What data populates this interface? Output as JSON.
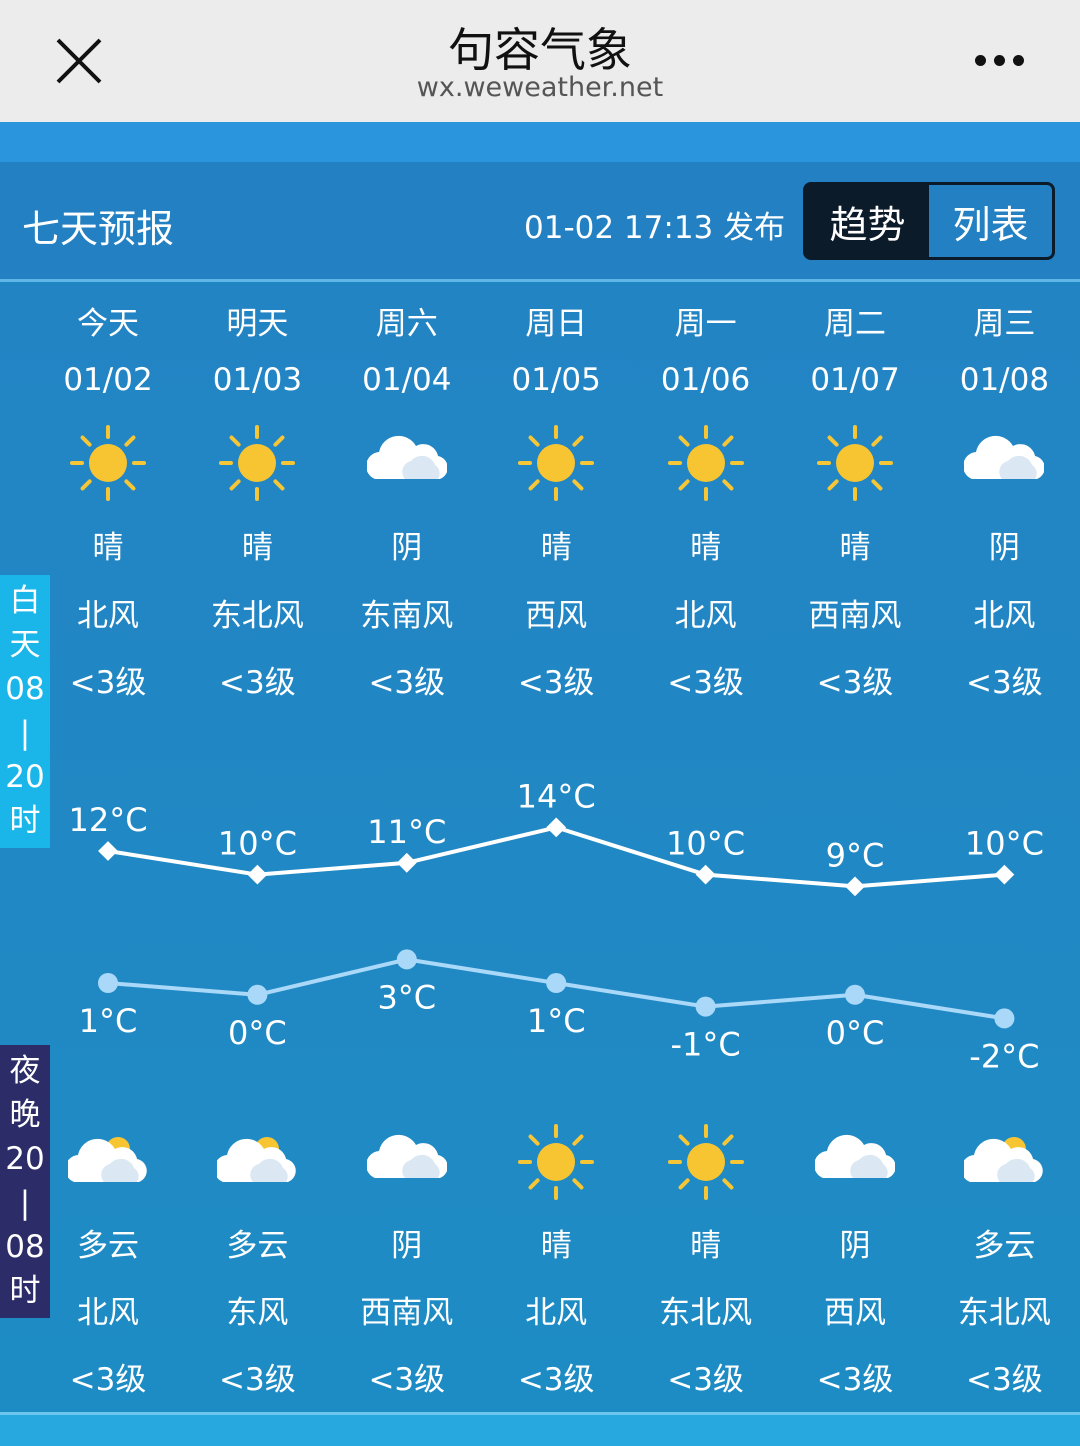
{
  "app": {
    "title": "句容气象",
    "url": "wx.weweather.net",
    "close_icon": "close-icon",
    "more_icon": "more-icon"
  },
  "header": {
    "title": "七天预报",
    "published": "01-02 17:13 发布",
    "toggle": [
      "趋势",
      "列表"
    ],
    "active": "趋势"
  },
  "labels": {
    "day": [
      "白",
      "天",
      "08",
      "|",
      "20",
      "时"
    ],
    "night": [
      "夜",
      "晚",
      "20",
      "|",
      "08",
      "时"
    ]
  },
  "colors": {
    "day_line": "#ffffff",
    "night_line": "#a9d8f8",
    "day_label_bg": "#1ab6ea",
    "night_label_bg": "#2c2d68"
  },
  "days": [
    {
      "name": "今天",
      "date": "01/02",
      "day_icon": "sun",
      "day_weather": "晴",
      "day_wind": "北风",
      "day_level": "<3级",
      "high": "12°C",
      "night_icon": "partly-cloudy",
      "night_weather": "多云",
      "night_wind": "北风",
      "night_level": "<3级",
      "low": "1°C"
    },
    {
      "name": "明天",
      "date": "01/03",
      "day_icon": "sun",
      "day_weather": "晴",
      "day_wind": "东北风",
      "day_level": "<3级",
      "high": "10°C",
      "night_icon": "partly-cloudy",
      "night_weather": "多云",
      "night_wind": "东风",
      "night_level": "<3级",
      "low": "0°C"
    },
    {
      "name": "周六",
      "date": "01/04",
      "day_icon": "cloud",
      "day_weather": "阴",
      "day_wind": "东南风",
      "day_level": "<3级",
      "high": "11°C",
      "night_icon": "cloud",
      "night_weather": "阴",
      "night_wind": "西南风",
      "night_level": "<3级",
      "low": "3°C"
    },
    {
      "name": "周日",
      "date": "01/05",
      "day_icon": "sun",
      "day_weather": "晴",
      "day_wind": "西风",
      "day_level": "<3级",
      "high": "14°C",
      "night_icon": "sun",
      "night_weather": "晴",
      "night_wind": "北风",
      "night_level": "<3级",
      "low": "1°C"
    },
    {
      "name": "周一",
      "date": "01/06",
      "day_icon": "sun",
      "day_weather": "晴",
      "day_wind": "北风",
      "day_level": "<3级",
      "high": "10°C",
      "night_icon": "sun",
      "night_weather": "晴",
      "night_wind": "东北风",
      "night_level": "<3级",
      "low": "-1°C"
    },
    {
      "name": "周二",
      "date": "01/07",
      "day_icon": "sun",
      "day_weather": "晴",
      "day_wind": "西南风",
      "day_level": "<3级",
      "high": "9°C",
      "night_icon": "cloud",
      "night_weather": "阴",
      "night_wind": "西风",
      "night_level": "<3级",
      "low": "0°C"
    },
    {
      "name": "周三",
      "date": "01/08",
      "day_icon": "cloud",
      "day_weather": "阴",
      "day_wind": "北风",
      "day_level": "<3级",
      "high": "10°C",
      "night_icon": "partly-cloudy",
      "night_weather": "多云",
      "night_wind": "东北风",
      "night_level": "<3级",
      "low": "-2°C"
    }
  ],
  "high_values": [
    12,
    10,
    11,
    14,
    10,
    9,
    10
  ],
  "low_values": [
    1,
    0,
    3,
    1,
    -1,
    0,
    -2
  ]
}
